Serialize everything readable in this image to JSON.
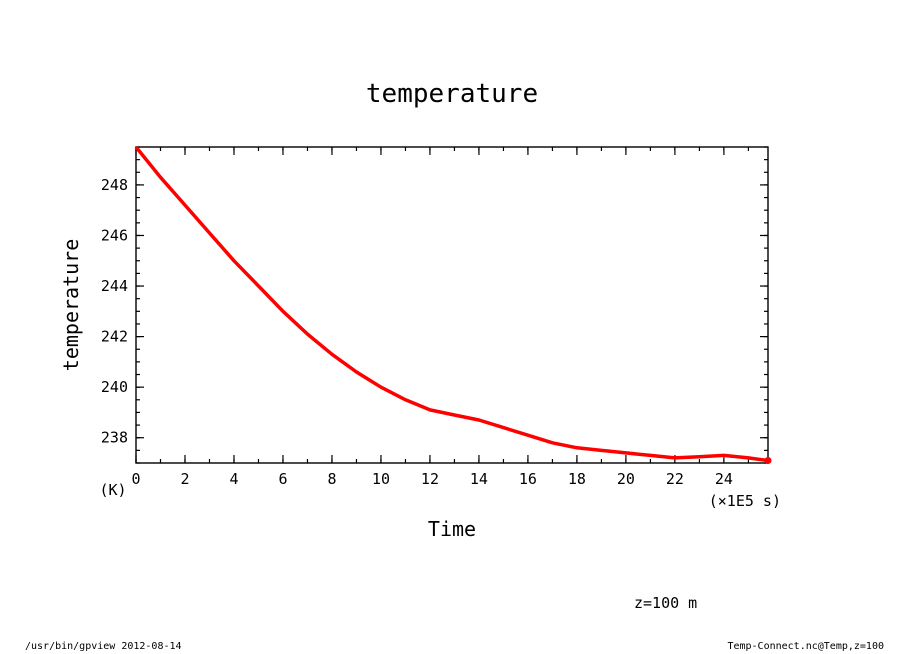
{
  "chart_data": {
    "type": "line",
    "title": "temperature",
    "xlabel": "Time",
    "ylabel": "temperature",
    "xunit": "(×1E5 s)",
    "yunit": "(K)",
    "xlim": [
      0,
      25.8
    ],
    "ylim": [
      237.0,
      249.5
    ],
    "xticks": [
      0,
      2,
      4,
      6,
      8,
      10,
      12,
      14,
      16,
      18,
      20,
      22,
      24
    ],
    "yticks": [
      238,
      240,
      242,
      244,
      246,
      248
    ],
    "line_color": "#ff0000",
    "series": [
      {
        "x": [
          0,
          1,
          2,
          3,
          4,
          5,
          6,
          7,
          8,
          9,
          10,
          11,
          12,
          13,
          14,
          15,
          16,
          17,
          18,
          19,
          20,
          21,
          22,
          23,
          24,
          25,
          25.8
        ],
        "values": [
          249.5,
          248.3,
          247.2,
          246.1,
          245.0,
          244.0,
          243.0,
          242.1,
          241.3,
          240.6,
          240.0,
          239.5,
          239.1,
          238.9,
          238.7,
          238.4,
          238.1,
          237.8,
          237.6,
          237.5,
          237.4,
          237.3,
          237.2,
          237.25,
          237.3,
          237.2,
          237.1
        ]
      }
    ]
  },
  "annotation": "z=100 m",
  "footer": {
    "left": "/usr/bin/gpview   2012-08-14",
    "right": "Temp-Connect.nc@Temp,z=100"
  }
}
